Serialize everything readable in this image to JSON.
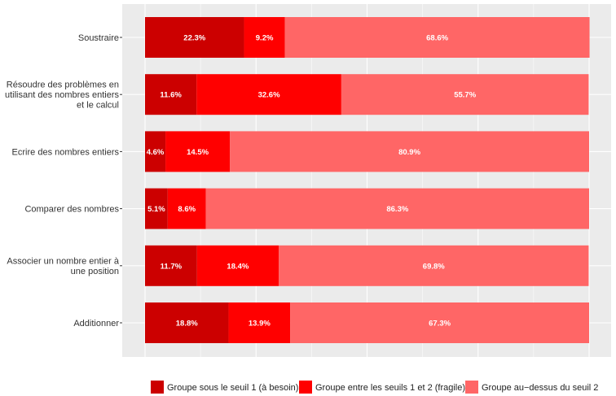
{
  "chart_data": {
    "type": "bar",
    "orientation": "horizontal",
    "stacked": true,
    "title": "",
    "xlabel": "",
    "ylabel": "",
    "xlim": [
      0,
      100
    ],
    "grid": true,
    "legend_position": "bottom",
    "categories": [
      [
        "Soustraire"
      ],
      [
        "Résoudre des problèmes en",
        "utilisant des nombres entiers",
        "et le calcul"
      ],
      [
        "Ecrire des nombres entiers"
      ],
      [
        "Comparer des nombres"
      ],
      [
        "Associer un nombre entier à",
        "une position"
      ],
      [
        "Additionner"
      ]
    ],
    "series": [
      {
        "name": "Groupe sous le seuil 1 (à besoin)",
        "color": "#cc0000",
        "values": [
          22.3,
          11.6,
          4.6,
          5.1,
          11.7,
          18.8
        ],
        "labels": [
          "22.3%",
          "11.6%",
          "4.6%",
          "5.1%",
          "11.7%",
          "18.8%"
        ]
      },
      {
        "name": "Groupe entre les seuils 1 et 2 (fragile)",
        "color": "#ff0000",
        "values": [
          9.2,
          32.6,
          14.5,
          8.6,
          18.4,
          13.9
        ],
        "labels": [
          "9.2%",
          "32.6%",
          "14.5%",
          "8.6%",
          "18.4%",
          "13.9%"
        ]
      },
      {
        "name": "Groupe au−dessus du seuil 2",
        "color": "#ff6666",
        "values": [
          68.6,
          55.7,
          80.9,
          86.3,
          69.8,
          67.3
        ],
        "labels": [
          "68.6%",
          "55.7%",
          "80.9%",
          "86.3%",
          "69.8%",
          "67.3%"
        ]
      }
    ],
    "colors": {
      "panel_background": "#ebebeb",
      "grid_line": "#ffffff"
    }
  }
}
